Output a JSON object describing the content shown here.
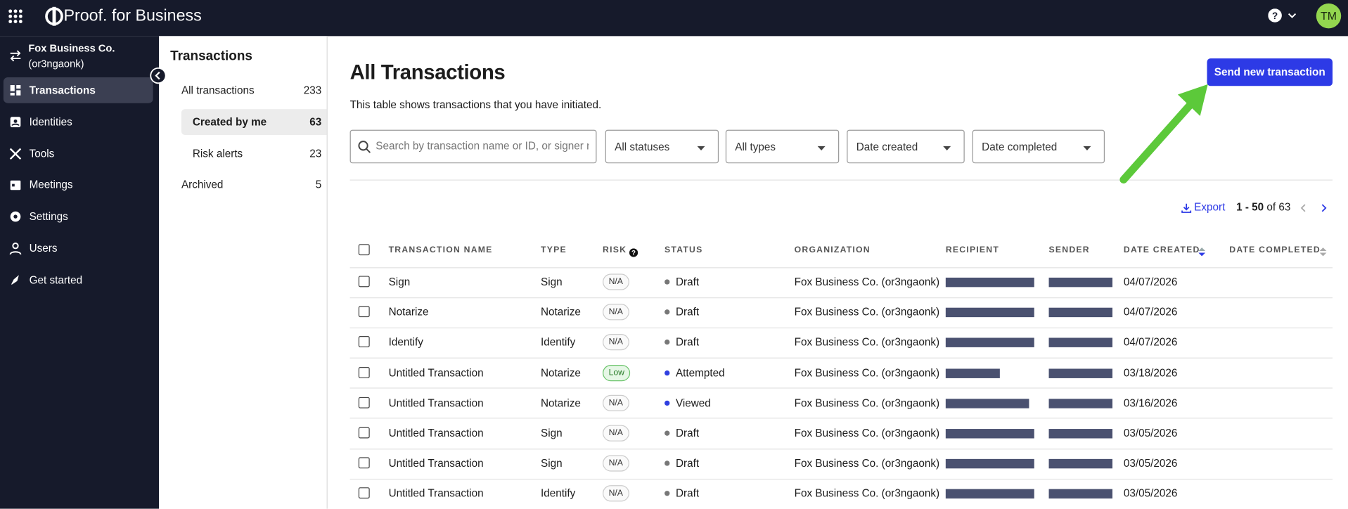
{
  "header": {
    "logo": "Proof.",
    "logo_suffix": "for Business",
    "avatar": "TM"
  },
  "sidebar": {
    "org_name": "Fox Business Co.",
    "org_id": "(or3ngaonk)",
    "nav": [
      "Transactions",
      "Identities",
      "Tools",
      "Meetings",
      "Settings",
      "Users",
      "Get started"
    ]
  },
  "subnav": {
    "title": "Transactions",
    "items": [
      {
        "label": "All transactions",
        "count": 233
      },
      {
        "label": "Created by me",
        "count": 63
      },
      {
        "label": "Risk alerts",
        "count": 23
      },
      {
        "label": "Archived",
        "count": 5
      }
    ]
  },
  "page": {
    "title": "All Transactions",
    "description": "This table shows transactions that you have initiated.",
    "button": "Send new transaction",
    "search_placeholder": "Search by transaction name or ID, or signer na",
    "filters": [
      "All statuses",
      "All types",
      "Date created",
      "Date completed"
    ],
    "export": "Export",
    "pagination": {
      "range": "1 - 50",
      "of": "of",
      "total": 63
    }
  },
  "table": {
    "columns": [
      "TRANSACTION NAME",
      "TYPE",
      "RISK",
      "STATUS",
      "ORGANIZATION",
      "RECIPIENT",
      "SENDER",
      "DATE CREATED",
      "DATE COMPLETED"
    ],
    "rows": [
      {
        "name": "Sign",
        "type": "Sign",
        "risk": "N/A",
        "status": "Draft",
        "status_color": "#777777",
        "organization": "Fox Business Co. (or3ngaonk)",
        "date_created": "04/07/2026"
      },
      {
        "name": "Notarize",
        "type": "Notarize",
        "risk": "N/A",
        "status": "Draft",
        "status_color": "#777777",
        "organization": "Fox Business Co. (or3ngaonk)",
        "date_created": "04/07/2026"
      },
      {
        "name": "Identify",
        "type": "Identify",
        "risk": "N/A",
        "status": "Draft",
        "status_color": "#777777",
        "organization": "Fox Business Co. (or3ngaonk)",
        "date_created": "04/07/2026"
      },
      {
        "name": "Untitled Transaction",
        "type": "Notarize",
        "risk": "Low",
        "status": "Attempted",
        "status_color": "#2f3fe0",
        "organization": "Fox Business Co. (or3ngaonk)",
        "date_created": "03/18/2026"
      },
      {
        "name": "Untitled Transaction",
        "type": "Notarize",
        "risk": "N/A",
        "status": "Viewed",
        "status_color": "#2f3fe0",
        "organization": "Fox Business Co. (or3ngaonk)",
        "date_created": "03/16/2026"
      },
      {
        "name": "Untitled Transaction",
        "type": "Sign",
        "risk": "N/A",
        "status": "Draft",
        "status_color": "#777777",
        "organization": "Fox Business Co. (or3ngaonk)",
        "date_created": "03/05/2026"
      },
      {
        "name": "Untitled Transaction",
        "type": "Sign",
        "risk": "N/A",
        "status": "Draft",
        "status_color": "#777777",
        "organization": "Fox Business Co. (or3ngaonk)",
        "date_created": "03/05/2026"
      },
      {
        "name": "Untitled Transaction",
        "type": "Identify",
        "risk": "N/A",
        "status": "Draft",
        "status_color": "#777777",
        "organization": "Fox Business Co. (or3ngaonk)",
        "date_created": "03/05/2026"
      }
    ]
  }
}
